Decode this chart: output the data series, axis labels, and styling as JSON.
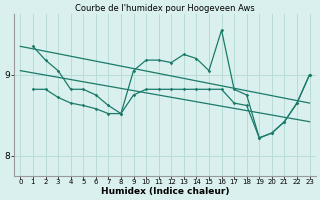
{
  "title": "Courbe de l'humidex pour Hoogeveen Aws",
  "xlabel": "Humidex (Indice chaleur)",
  "bg_color": "#daf0ee",
  "grid_color": "#b8dcd8",
  "line_color": "#1a7a6a",
  "xlim": [
    -0.5,
    23.5
  ],
  "ylim": [
    7.75,
    9.75
  ],
  "yticks": [
    8,
    9
  ],
  "xticks": [
    0,
    1,
    2,
    3,
    4,
    5,
    6,
    7,
    8,
    9,
    10,
    11,
    12,
    13,
    14,
    15,
    16,
    17,
    18,
    19,
    20,
    21,
    22,
    23
  ],
  "series_jagged": [
    9.35,
    9.18,
    9.05,
    8.82,
    8.82,
    8.75,
    8.62,
    8.52,
    9.05,
    9.18,
    9.18,
    9.15,
    9.25,
    9.2,
    9.05,
    9.55,
    8.82,
    8.75,
    8.22,
    8.28,
    8.42,
    8.65,
    9.0
  ],
  "series_lower": [
    8.82,
    8.82,
    8.72,
    8.65,
    8.62,
    8.58,
    8.52,
    8.52,
    8.75,
    8.82,
    8.82,
    8.82,
    8.82,
    8.82,
    8.82,
    8.82,
    8.65,
    8.62,
    8.22,
    8.28,
    8.42,
    8.65,
    9.0
  ],
  "trend1_x": [
    0,
    23
  ],
  "trend1_y": [
    9.35,
    8.65
  ],
  "trend2_x": [
    0,
    23
  ],
  "trend2_y": [
    9.05,
    8.42
  ],
  "trend3_x": [
    2,
    17
  ],
  "trend3_y": [
    9.05,
    8.72
  ]
}
